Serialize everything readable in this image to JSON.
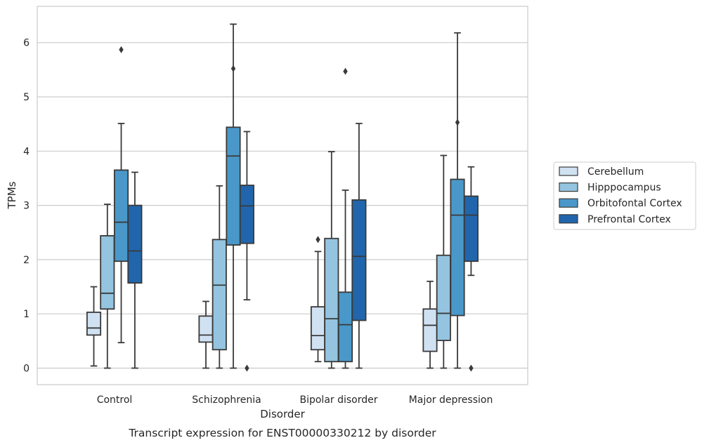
{
  "chart_data": {
    "type": "box",
    "xlabel": "Disorder",
    "ylabel": "TPMs",
    "caption": "Transcript expression for ENST00000330212 by disorder",
    "ylim": [
      -0.3,
      6.55
    ],
    "yticks": [
      "0",
      "1",
      "2",
      "3",
      "4",
      "5",
      "6"
    ],
    "grid": "horizontal",
    "legend_position": "right",
    "categories": [
      "Control",
      "Schizophrenia",
      "Bipolar disorder",
      "Major depression"
    ],
    "series": [
      {
        "name": "Cerebellum",
        "color": "#d0e1f2",
        "boxes": [
          {
            "whisker_low": 0.04,
            "q1": 0.61,
            "median": 0.74,
            "q3": 1.03,
            "whisker_high": 1.5,
            "outliers": []
          },
          {
            "whisker_low": 0.0,
            "q1": 0.48,
            "median": 0.61,
            "q3": 0.96,
            "whisker_high": 1.23,
            "outliers": []
          },
          {
            "whisker_low": 0.12,
            "q1": 0.34,
            "median": 0.6,
            "q3": 1.13,
            "whisker_high": 2.15,
            "outliers": [
              2.37
            ]
          },
          {
            "whisker_low": 0.0,
            "q1": 0.31,
            "median": 0.79,
            "q3": 1.09,
            "whisker_high": 1.6,
            "outliers": []
          }
        ]
      },
      {
        "name": "Hipppocampus",
        "color": "#94c4df",
        "boxes": [
          {
            "whisker_low": 0.0,
            "q1": 1.09,
            "median": 1.38,
            "q3": 2.44,
            "whisker_high": 3.02,
            "outliers": []
          },
          {
            "whisker_low": 0.0,
            "q1": 0.34,
            "median": 1.53,
            "q3": 2.37,
            "whisker_high": 3.36,
            "outliers": []
          },
          {
            "whisker_low": 0.0,
            "q1": 0.12,
            "median": 0.91,
            "q3": 2.39,
            "whisker_high": 3.99,
            "outliers": []
          },
          {
            "whisker_low": 0.0,
            "q1": 0.51,
            "median": 1.01,
            "q3": 2.08,
            "whisker_high": 3.92,
            "outliers": []
          }
        ]
      },
      {
        "name": "Orbitofontal Cortex",
        "color": "#4a98c9",
        "boxes": [
          {
            "whisker_low": 0.47,
            "q1": 1.97,
            "median": 2.69,
            "q3": 3.65,
            "whisker_high": 4.51,
            "outliers": [
              5.87
            ]
          },
          {
            "whisker_low": 0.0,
            "q1": 2.27,
            "median": 3.91,
            "q3": 4.44,
            "whisker_high": 6.34,
            "outliers": [
              5.52
            ]
          },
          {
            "whisker_low": 0.0,
            "q1": 0.12,
            "median": 0.8,
            "q3": 1.4,
            "whisker_high": 3.28,
            "outliers": [
              5.47
            ]
          },
          {
            "whisker_low": 0.0,
            "q1": 0.97,
            "median": 2.82,
            "q3": 3.48,
            "whisker_high": 6.18,
            "outliers": [
              4.53
            ]
          }
        ]
      },
      {
        "name": "Prefrontal Cortex",
        "color": "#2166ac",
        "boxes": [
          {
            "whisker_low": 0.0,
            "q1": 1.57,
            "median": 2.16,
            "q3": 3.0,
            "whisker_high": 3.61,
            "outliers": []
          },
          {
            "whisker_low": 1.26,
            "q1": 2.3,
            "median": 2.99,
            "q3": 3.37,
            "whisker_high": 4.36,
            "outliers": [
              0.0
            ]
          },
          {
            "whisker_low": 0.0,
            "q1": 0.88,
            "median": 2.06,
            "q3": 3.1,
            "whisker_high": 4.51,
            "outliers": []
          },
          {
            "whisker_low": 1.71,
            "q1": 1.97,
            "median": 2.82,
            "q3": 3.17,
            "whisker_high": 3.71,
            "outliers": [
              0.0
            ]
          }
        ]
      }
    ]
  }
}
